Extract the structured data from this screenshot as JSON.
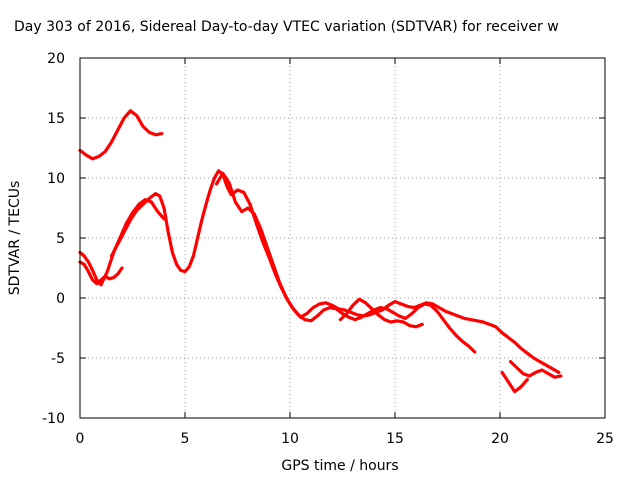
{
  "chart_data": {
    "type": "line",
    "title": "Day 303 of 2016, Sidereal Day-to-day VTEC variation (SDTVAR) for receiver w",
    "xlabel": "GPS time / hours",
    "ylabel": "SDTVAR / TECUs",
    "xlim": [
      0,
      25
    ],
    "ylim": [
      -10,
      20
    ],
    "xticks": [
      "0",
      "5",
      "10",
      "15",
      "20",
      "25"
    ],
    "yticks": [
      "-10",
      "-5",
      "0",
      "5",
      "10",
      "15",
      "20"
    ],
    "grid": true,
    "series_color": "#ff0000",
    "series": [
      {
        "x": [
          0.0,
          0.3,
          0.6,
          0.9,
          1.2,
          1.5,
          1.8,
          2.1,
          2.4,
          2.7,
          3.0,
          3.3,
          3.6,
          3.9
        ],
        "y": [
          12.3,
          11.9,
          11.6,
          11.8,
          12.2,
          13.0,
          14.0,
          15.0,
          15.6,
          15.2,
          14.3,
          13.8,
          13.6,
          13.7
        ]
      },
      {
        "x": [
          0.0,
          0.2,
          0.4,
          0.6,
          0.8,
          1.0,
          1.2,
          1.4,
          1.6,
          1.8,
          2.0
        ],
        "y": [
          3.0,
          2.8,
          2.2,
          1.5,
          1.2,
          1.5,
          1.8,
          1.6,
          1.7,
          2.0,
          2.5
        ]
      },
      {
        "x": [
          0.0,
          0.2,
          0.4,
          0.6,
          0.8,
          1.0,
          1.3,
          1.6,
          1.9,
          2.2,
          2.5,
          2.8,
          3.1,
          3.4,
          3.7,
          4.0
        ],
        "y": [
          3.8,
          3.5,
          3.0,
          2.3,
          1.5,
          1.1,
          2.2,
          3.8,
          5.0,
          6.2,
          7.1,
          7.8,
          8.2,
          8.0,
          7.2,
          6.6
        ]
      },
      {
        "x": [
          1.5,
          1.8,
          2.1,
          2.4,
          2.7,
          3.0,
          3.3,
          3.6,
          3.8,
          4.0,
          4.2,
          4.4,
          4.6,
          4.8,
          5.0,
          5.2,
          5.4,
          5.6,
          5.8,
          6.0,
          6.2,
          6.4,
          6.6,
          6.8,
          7.0,
          7.2,
          7.5,
          7.8,
          8.1,
          8.4,
          8.7,
          9.0,
          9.3,
          9.6,
          9.9,
          10.2,
          10.5,
          10.8,
          11.1,
          11.4,
          11.7,
          12.0,
          12.3,
          12.6,
          12.9,
          13.2,
          13.5,
          13.8,
          14.1,
          14.4,
          14.7,
          15.0,
          15.3,
          15.6,
          15.9,
          16.2,
          16.5,
          16.8,
          17.1,
          17.4,
          17.7,
          18.0,
          18.3,
          18.6,
          18.9,
          19.2,
          19.5,
          19.8,
          20.1,
          20.4,
          20.7,
          21.0,
          21.3,
          21.6,
          21.9,
          22.2,
          22.5,
          22.8
        ],
        "y": [
          3.5,
          4.5,
          5.5,
          6.5,
          7.3,
          7.8,
          8.3,
          8.7,
          8.5,
          7.5,
          5.5,
          3.8,
          2.8,
          2.3,
          2.2,
          2.6,
          3.5,
          5.0,
          6.5,
          7.8,
          9.0,
          10.0,
          10.6,
          10.3,
          9.3,
          8.6,
          9.0,
          8.8,
          7.8,
          6.2,
          4.7,
          3.4,
          2.0,
          0.8,
          -0.2,
          -1.0,
          -1.6,
          -1.3,
          -0.8,
          -0.5,
          -0.4,
          -0.6,
          -0.9,
          -1.0,
          -1.2,
          -1.4,
          -1.5,
          -1.4,
          -1.2,
          -1.0,
          -0.6,
          -0.3,
          -0.5,
          -0.7,
          -0.8,
          -0.6,
          -0.4,
          -0.5,
          -0.8,
          -1.1,
          -1.3,
          -1.5,
          -1.7,
          -1.8,
          -1.9,
          -2.0,
          -2.2,
          -2.4,
          -2.9,
          -3.3,
          -3.7,
          -4.2,
          -4.6,
          -5.0,
          -5.3,
          -5.6,
          -5.9,
          -6.2
        ]
      },
      {
        "x": [
          6.5,
          6.8,
          7.1,
          7.4,
          7.7,
          8.0,
          8.3,
          8.6,
          8.9,
          9.2,
          9.5,
          9.8,
          10.1,
          10.4,
          10.7,
          11.0,
          11.3,
          11.6,
          11.9,
          12.2,
          12.5,
          12.8,
          13.1,
          13.4,
          13.7,
          14.0,
          14.3,
          14.6,
          14.9,
          15.2,
          15.5,
          15.8,
          16.1,
          16.4,
          16.7,
          17.0,
          17.3,
          17.6,
          17.9,
          18.2,
          18.5,
          18.8
        ],
        "y": [
          9.5,
          10.4,
          9.6,
          8.0,
          7.2,
          7.5,
          7.0,
          5.8,
          4.3,
          2.8,
          1.3,
          0.1,
          -0.8,
          -1.4,
          -1.8,
          -1.9,
          -1.5,
          -1.0,
          -0.8,
          -0.9,
          -1.3,
          -1.6,
          -1.8,
          -1.6,
          -1.3,
          -1.0,
          -0.8,
          -0.9,
          -1.2,
          -1.5,
          -1.7,
          -1.3,
          -0.8,
          -0.5,
          -0.6,
          -1.1,
          -1.8,
          -2.5,
          -3.1,
          -3.6,
          -4.0,
          -4.5
        ]
      },
      {
        "x": [
          12.4,
          12.7,
          13.0,
          13.3,
          13.6,
          13.9,
          14.2,
          14.5,
          14.8,
          15.1,
          15.4,
          15.7,
          16.0,
          16.3
        ],
        "y": [
          -1.8,
          -1.3,
          -0.6,
          -0.1,
          -0.4,
          -0.9,
          -1.4,
          -1.8,
          -2.0,
          -1.9,
          -2.0,
          -2.3,
          -2.4,
          -2.2
        ]
      },
      {
        "x": [
          20.5,
          20.8,
          21.1,
          21.4,
          21.7,
          22.0,
          22.3,
          22.6,
          22.9
        ],
        "y": [
          -5.3,
          -5.8,
          -6.3,
          -6.5,
          -6.2,
          -6.0,
          -6.3,
          -6.6,
          -6.5
        ]
      },
      {
        "x": [
          20.1,
          20.4,
          20.7,
          21.0,
          21.3
        ],
        "y": [
          -6.2,
          -7.0,
          -7.8,
          -7.4,
          -6.8
        ]
      }
    ]
  }
}
